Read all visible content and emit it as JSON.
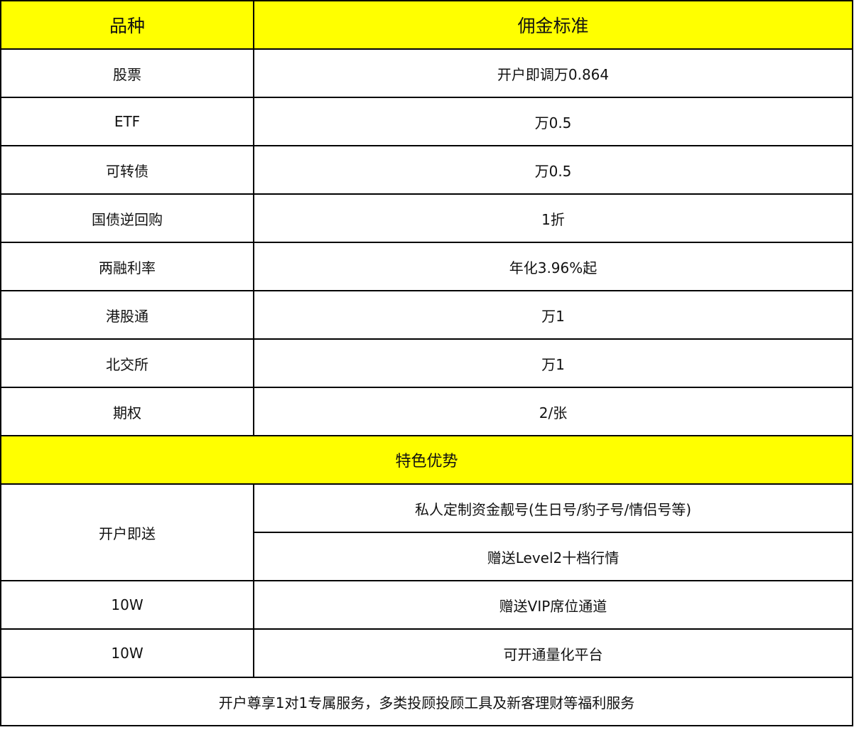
{
  "header": {
    "col1": "品种",
    "col2": "佣金标准"
  },
  "rows": [
    {
      "name": "股票",
      "value": "开户即调万0.864"
    },
    {
      "name": "ETF",
      "value": "万0.5"
    },
    {
      "name": "可转债",
      "value": "万0.5"
    },
    {
      "name": "国债逆回购",
      "value": "1折"
    },
    {
      "name": "两融利率",
      "value": "年化3.96%起"
    },
    {
      "name": "港股通",
      "value": "万1"
    },
    {
      "name": "北交所",
      "value": "万1"
    },
    {
      "name": "期权",
      "value": "2/张"
    }
  ],
  "section_title": "特色优势",
  "features": {
    "gift_label": "开户即送",
    "gift_items": [
      "私人定制资金靓号(生日号/豹子号/情侣号等)",
      "赠送Level2十档行情"
    ],
    "rows": [
      {
        "name": "10W",
        "value": "赠送VIP席位通道"
      },
      {
        "name": "10W",
        "value": "可开通量化平台"
      }
    ]
  },
  "footer": "开户尊享1对1专属服务，多类投顾投顾工具及新客理财等福利服务",
  "colors": {
    "highlight": "#ffff00",
    "border": "#000000"
  }
}
